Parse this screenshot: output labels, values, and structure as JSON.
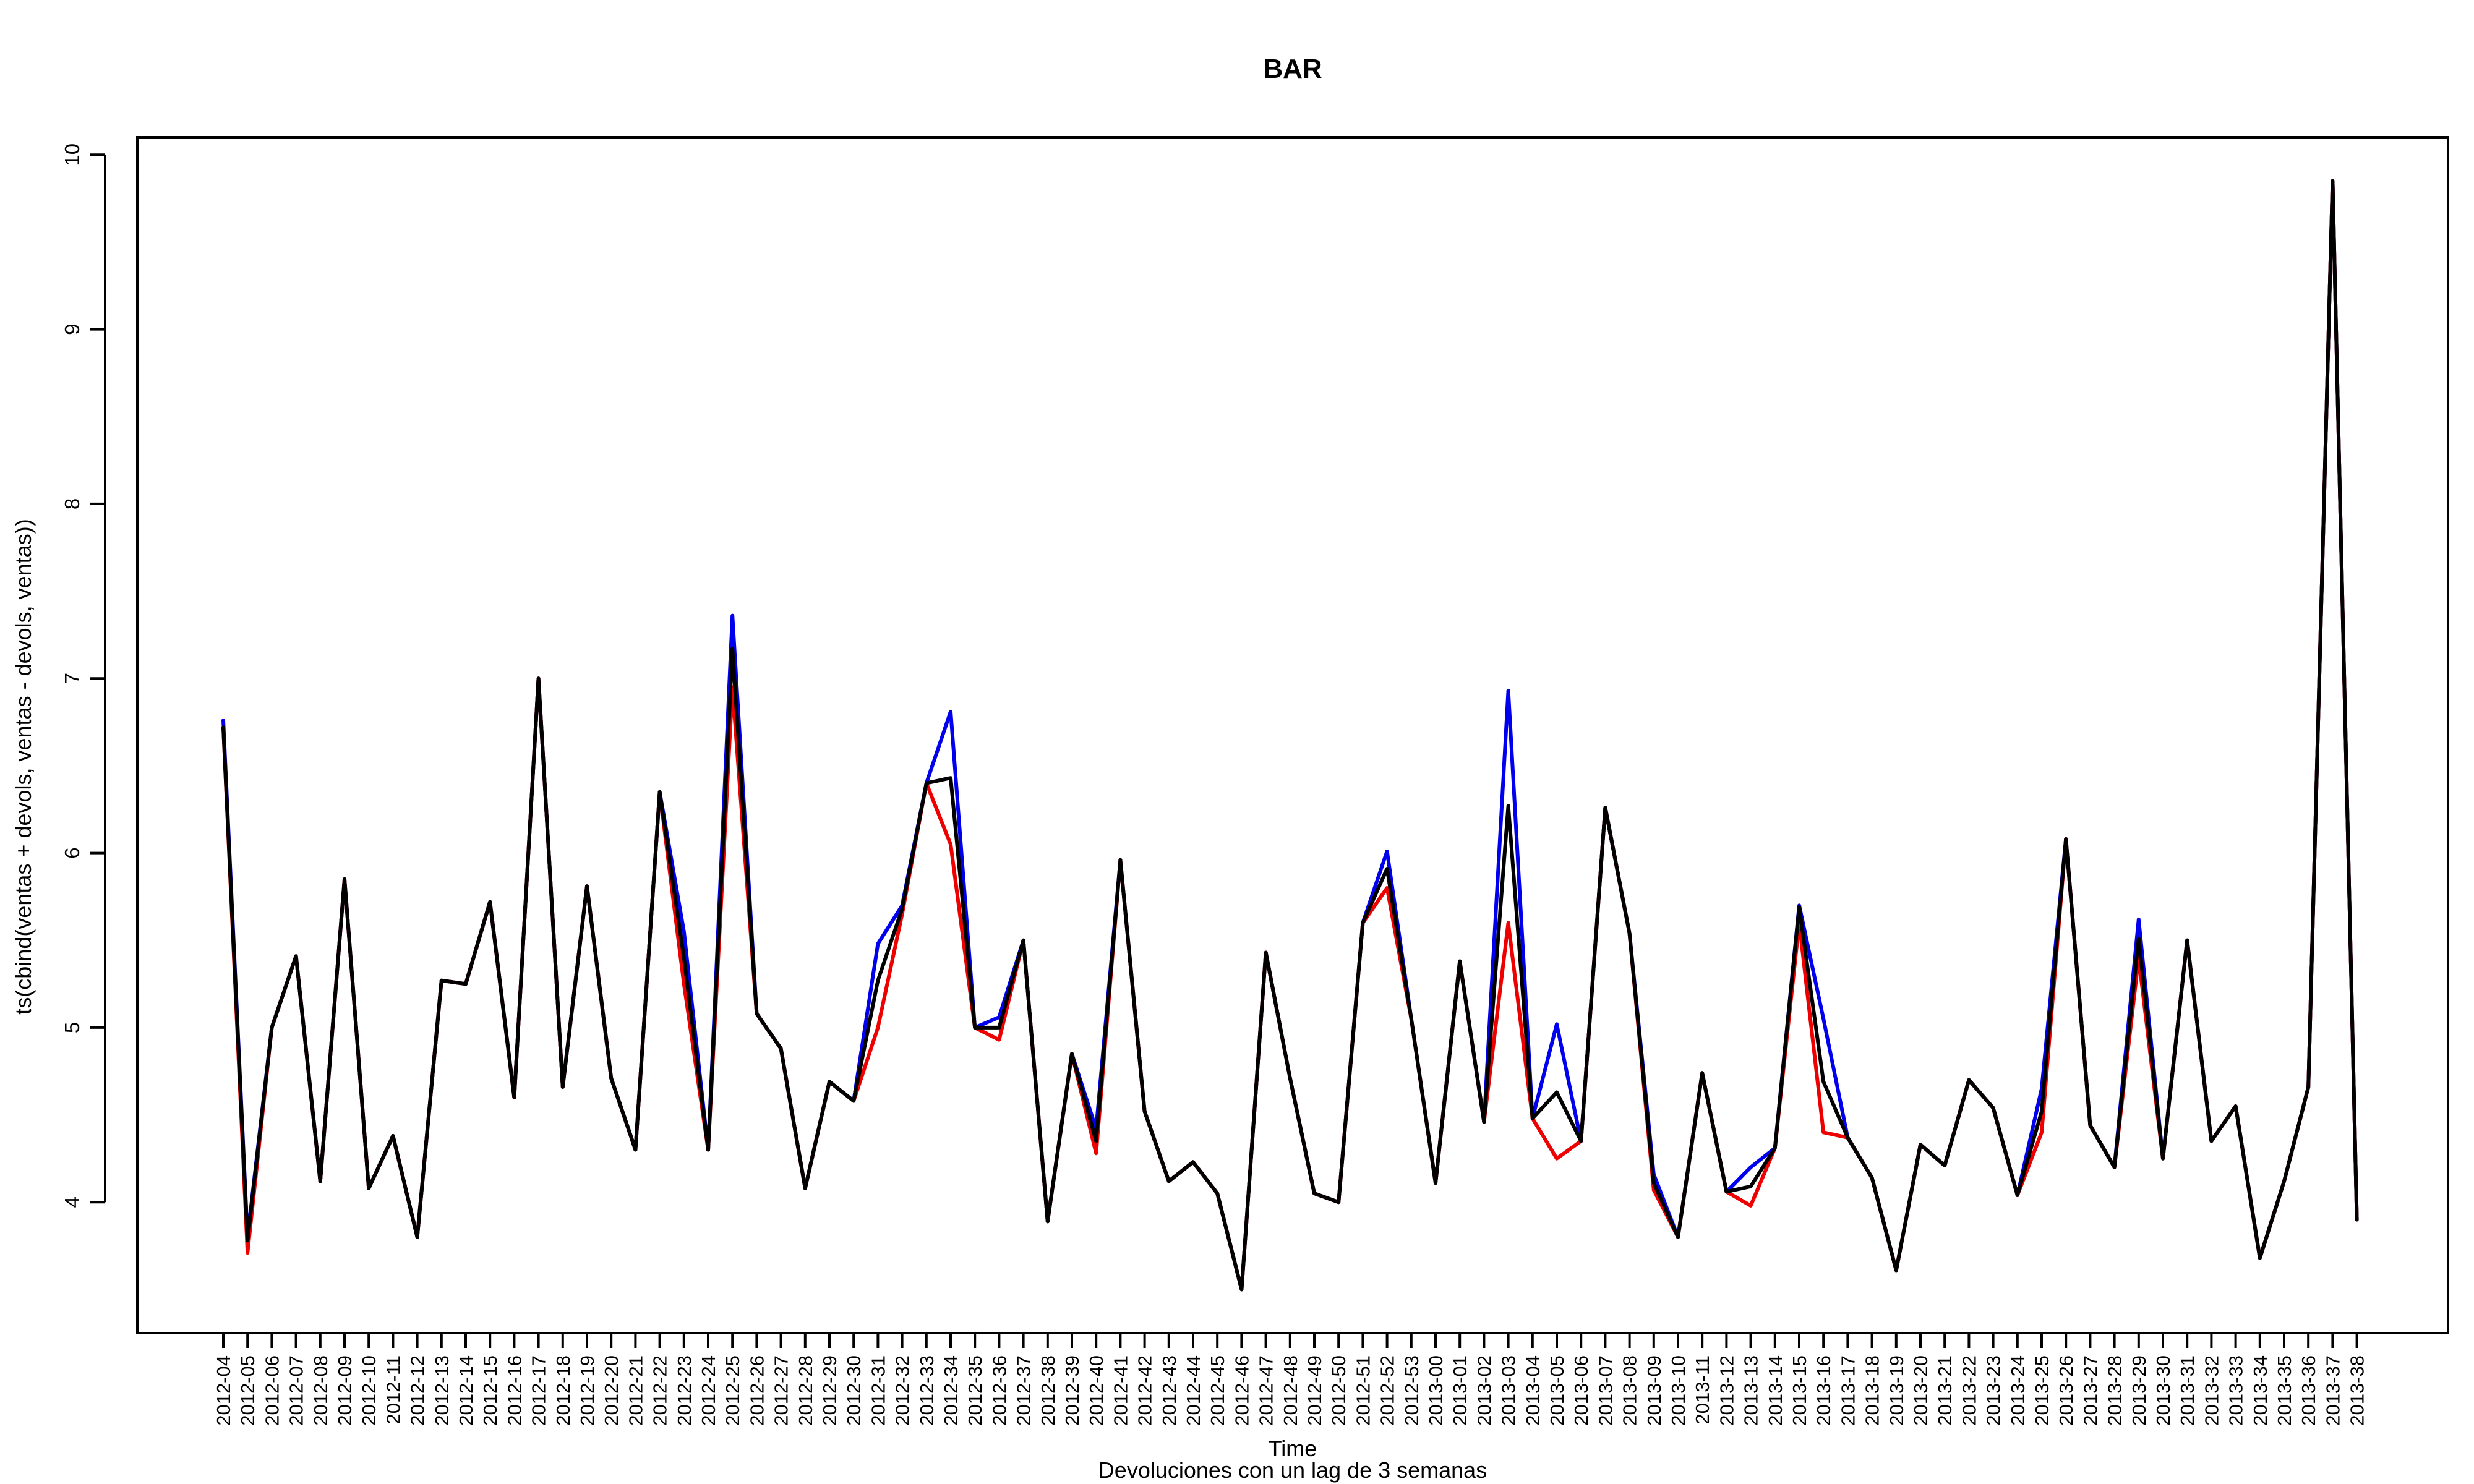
{
  "chart_data": {
    "type": "line",
    "title": "BAR",
    "xlabel": "Time",
    "ylabel": "ts(cbind(ventas + devols, ventas - devols, ventas))",
    "subtitle": "Devoluciones con un lag de 3 semanas",
    "ylim": [
      3.25,
      10.1
    ],
    "yticks": [
      4,
      5,
      6,
      7,
      8,
      9,
      10
    ],
    "ytick_labels": [
      "4",
      "5",
      "6",
      "7",
      "8",
      "9",
      "10"
    ],
    "grid": false,
    "legend": "none",
    "categories": [
      "2012-04",
      "2012-05",
      "2012-06",
      "2012-07",
      "2012-08",
      "2012-09",
      "2012-10",
      "2012-11",
      "2012-12",
      "2012-13",
      "2012-14",
      "2012-15",
      "2012-16",
      "2012-17",
      "2012-18",
      "2012-19",
      "2012-20",
      "2012-21",
      "2012-22",
      "2012-23",
      "2012-24",
      "2012-25",
      "2012-26",
      "2012-27",
      "2012-28",
      "2012-29",
      "2012-30",
      "2012-31",
      "2012-32",
      "2012-33",
      "2012-34",
      "2012-35",
      "2012-36",
      "2012-37",
      "2012-38",
      "2012-39",
      "2012-40",
      "2012-41",
      "2012-42",
      "2012-43",
      "2012-44",
      "2012-45",
      "2012-46",
      "2012-47",
      "2012-48",
      "2012-49",
      "2012-50",
      "2012-51",
      "2012-52",
      "2012-53",
      "2013-00",
      "2013-01",
      "2013-02",
      "2013-03",
      "2013-04",
      "2013-05",
      "2013-06",
      "2013-07",
      "2013-08",
      "2013-09",
      "2013-10",
      "2013-11",
      "2013-12",
      "2013-13",
      "2013-14",
      "2013-15",
      "2013-16",
      "2013-17",
      "2013-18",
      "2013-19",
      "2013-20",
      "2013-21",
      "2013-22",
      "2013-23",
      "2013-24",
      "2013-25",
      "2013-26",
      "2013-27",
      "2013-28",
      "2013-29",
      "2013-30",
      "2013-31",
      "2013-32",
      "2013-33",
      "2013-34",
      "2013-35",
      "2013-36",
      "2013-37",
      "2013-38"
    ],
    "series": [
      {
        "color": "#0000ee",
        "values": [
          6.76,
          3.8,
          5.0,
          5.41,
          4.12,
          5.85,
          4.08,
          4.38,
          3.8,
          5.27,
          5.25,
          5.72,
          4.6,
          7.0,
          4.66,
          5.81,
          4.71,
          4.3,
          6.35,
          5.55,
          4.3,
          7.36,
          5.08,
          4.88,
          4.08,
          4.69,
          4.58,
          5.48,
          5.7,
          6.4,
          6.81,
          5.0,
          5.06,
          5.5,
          3.89,
          4.85,
          4.42,
          5.96,
          4.52,
          4.12,
          4.23,
          4.05,
          3.5,
          5.43,
          4.71,
          4.05,
          4.0,
          5.6,
          6.01,
          5.05,
          4.11,
          5.38,
          4.46,
          6.93,
          4.48,
          5.02,
          4.35,
          6.26,
          5.54,
          4.16,
          3.8,
          4.74,
          4.06,
          4.2,
          4.31,
          5.7,
          5.05,
          4.37,
          4.14,
          3.61,
          4.33,
          4.21,
          4.7,
          4.54,
          4.04,
          4.65,
          6.08,
          4.44,
          4.2,
          5.62,
          4.25,
          5.5,
          4.35,
          4.55,
          3.68,
          4.12,
          4.66,
          9.85,
          3.9
        ]
      },
      {
        "color": "#ee0000",
        "values": [
          6.72,
          3.71,
          5.0,
          5.41,
          4.12,
          5.85,
          4.08,
          4.38,
          3.8,
          5.27,
          5.25,
          5.72,
          4.6,
          7.0,
          4.66,
          5.81,
          4.71,
          4.3,
          6.35,
          5.25,
          4.3,
          6.95,
          5.08,
          4.88,
          4.08,
          4.69,
          4.58,
          5.0,
          5.65,
          6.4,
          6.05,
          5.0,
          4.93,
          5.5,
          3.89,
          4.85,
          4.28,
          5.96,
          4.52,
          4.12,
          4.23,
          4.05,
          3.5,
          5.43,
          4.71,
          4.05,
          4.0,
          5.6,
          5.8,
          5.05,
          4.11,
          5.38,
          4.46,
          5.6,
          4.48,
          4.25,
          4.35,
          6.26,
          5.54,
          4.07,
          3.8,
          4.74,
          4.06,
          3.98,
          4.31,
          5.6,
          4.4,
          4.37,
          4.14,
          3.61,
          4.33,
          4.21,
          4.7,
          4.54,
          4.04,
          4.4,
          6.08,
          4.44,
          4.2,
          5.4,
          4.25,
          5.5,
          4.35,
          4.55,
          3.68,
          4.12,
          4.66,
          9.85,
          3.9
        ]
      },
      {
        "color": "#000000",
        "values": [
          6.72,
          3.78,
          5.0,
          5.41,
          4.12,
          5.85,
          4.08,
          4.38,
          3.8,
          5.27,
          5.25,
          5.72,
          4.6,
          7.0,
          4.66,
          5.81,
          4.71,
          4.3,
          6.35,
          5.4,
          4.3,
          7.17,
          5.08,
          4.88,
          4.08,
          4.69,
          4.58,
          5.27,
          5.68,
          6.4,
          6.43,
          5.0,
          5.0,
          5.5,
          3.89,
          4.85,
          4.35,
          5.96,
          4.52,
          4.12,
          4.23,
          4.05,
          3.5,
          5.43,
          4.71,
          4.05,
          4.0,
          5.6,
          5.91,
          5.05,
          4.11,
          5.38,
          4.46,
          6.27,
          4.48,
          4.63,
          4.35,
          6.26,
          5.54,
          4.11,
          3.8,
          4.74,
          4.06,
          4.09,
          4.31,
          5.69,
          4.69,
          4.37,
          4.14,
          3.61,
          4.33,
          4.21,
          4.7,
          4.54,
          4.04,
          4.52,
          6.08,
          4.44,
          4.2,
          5.51,
          4.25,
          5.5,
          4.35,
          4.55,
          3.68,
          4.12,
          4.66,
          9.85,
          3.9
        ]
      }
    ]
  }
}
